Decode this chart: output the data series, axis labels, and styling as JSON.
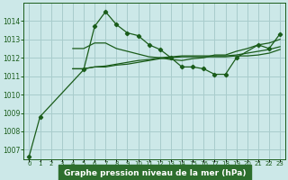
{
  "title": "Graphe pression niveau de la mer (hPa)",
  "ylim": [
    1006.5,
    1015.0
  ],
  "yticks": [
    1007,
    1008,
    1009,
    1010,
    1011,
    1012,
    1013,
    1014
  ],
  "xlim": [
    -0.5,
    23.5
  ],
  "bg_color": "#cce8e8",
  "grid_color": "#a8cccc",
  "line_color": "#1a5c1a",
  "label_bg": "#2d6e2d",
  "label_fg": "#ffffff",
  "series": [
    [
      1006.65,
      1008.8,
      null,
      null,
      null,
      1011.35,
      1013.7,
      1014.5,
      1013.8,
      1013.35,
      1013.2,
      1012.7,
      1012.45,
      1012.0,
      1011.5,
      1011.5,
      1011.4,
      1011.1,
      1011.1,
      1012.0,
      null,
      1012.7,
      1012.5,
      1013.3
    ],
    [
      null,
      null,
      null,
      null,
      1012.5,
      1012.5,
      1012.8,
      1012.8,
      1012.5,
      1012.35,
      1012.2,
      1012.05,
      1012.0,
      1011.9,
      1011.85,
      1011.95,
      1012.0,
      1012.15,
      1012.15,
      1012.35,
      1012.5,
      1012.7,
      1012.8,
      1013.0
    ],
    [
      null,
      null,
      null,
      null,
      1011.4,
      1011.4,
      1011.5,
      1011.55,
      1011.65,
      1011.75,
      1011.85,
      1011.9,
      1012.0,
      1012.05,
      1012.1,
      1012.1,
      1012.1,
      1012.1,
      1012.1,
      1012.15,
      1012.25,
      1012.35,
      1012.45,
      1012.6
    ],
    [
      null,
      null,
      null,
      null,
      1011.4,
      1011.4,
      1011.5,
      1011.5,
      1011.6,
      1011.65,
      1011.75,
      1011.85,
      1011.95,
      1012.0,
      1012.05,
      1012.05,
      1012.05,
      1012.05,
      1012.05,
      1012.1,
      1012.1,
      1012.15,
      1012.25,
      1012.45
    ]
  ],
  "xlabel_ticks": [
    "0",
    "1",
    "2",
    "3",
    "4",
    "5",
    "6",
    "7",
    "8",
    "9",
    "10",
    "11",
    "12",
    "13",
    "14",
    "15",
    "16",
    "17",
    "18",
    "19",
    "20",
    "21",
    "22",
    "23"
  ],
  "tick_fontsize": 5.0,
  "ytick_fontsize": 5.5,
  "title_fontsize": 6.5,
  "linewidth": 0.9,
  "marker_size": 2.2
}
